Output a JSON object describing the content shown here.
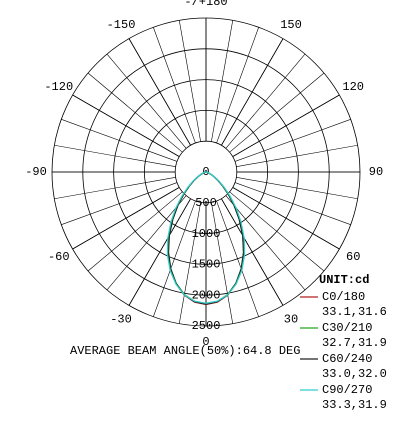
{
  "chart_data": {
    "type": "polar",
    "angle_ticks": [
      {
        "value": 180,
        "label": "-/+180"
      },
      150,
      120,
      90,
      60,
      30,
      0,
      -30,
      -60,
      -90,
      -120,
      -150
    ],
    "rlim": [
      0,
      2500
    ],
    "rticks": [
      0,
      500,
      1000,
      1500,
      2000,
      2500
    ],
    "angles": [
      0,
      5,
      10,
      15,
      20,
      25,
      30,
      35,
      40,
      45,
      50,
      55,
      60,
      65,
      70,
      75,
      80,
      85,
      90
    ],
    "unit_label": "UNIT:cd",
    "annotation": "AVERAGE BEAM ANGLE(50%):64.8 DEG",
    "series": [
      {
        "name": "C0/180",
        "beam": "33.1,31.6",
        "color": "#b22222",
        "values": [
          2150,
          2120,
          2030,
          1880,
          1680,
          1450,
          1200,
          950,
          720,
          520,
          360,
          240,
          150,
          90,
          50,
          25,
          10,
          5,
          0
        ]
      },
      {
        "name": "C30/210",
        "beam": "32.7,31.9",
        "color": "#22aa22",
        "values": [
          2140,
          2110,
          2020,
          1870,
          1670,
          1440,
          1190,
          940,
          710,
          510,
          350,
          235,
          145,
          85,
          48,
          24,
          10,
          5,
          0
        ]
      },
      {
        "name": "C60/240",
        "beam": "33.0,32.0",
        "color": "#222222",
        "values": [
          2145,
          2115,
          2025,
          1875,
          1675,
          1445,
          1195,
          945,
          715,
          515,
          355,
          238,
          148,
          88,
          49,
          25,
          10,
          5,
          0
        ]
      },
      {
        "name": "C90/270",
        "beam": "33.3,31.9",
        "color": "#33cccc",
        "values": [
          2130,
          2105,
          2025,
          1885,
          1700,
          1480,
          1240,
          990,
          760,
          550,
          380,
          255,
          160,
          95,
          55,
          28,
          12,
          5,
          0
        ]
      }
    ]
  }
}
